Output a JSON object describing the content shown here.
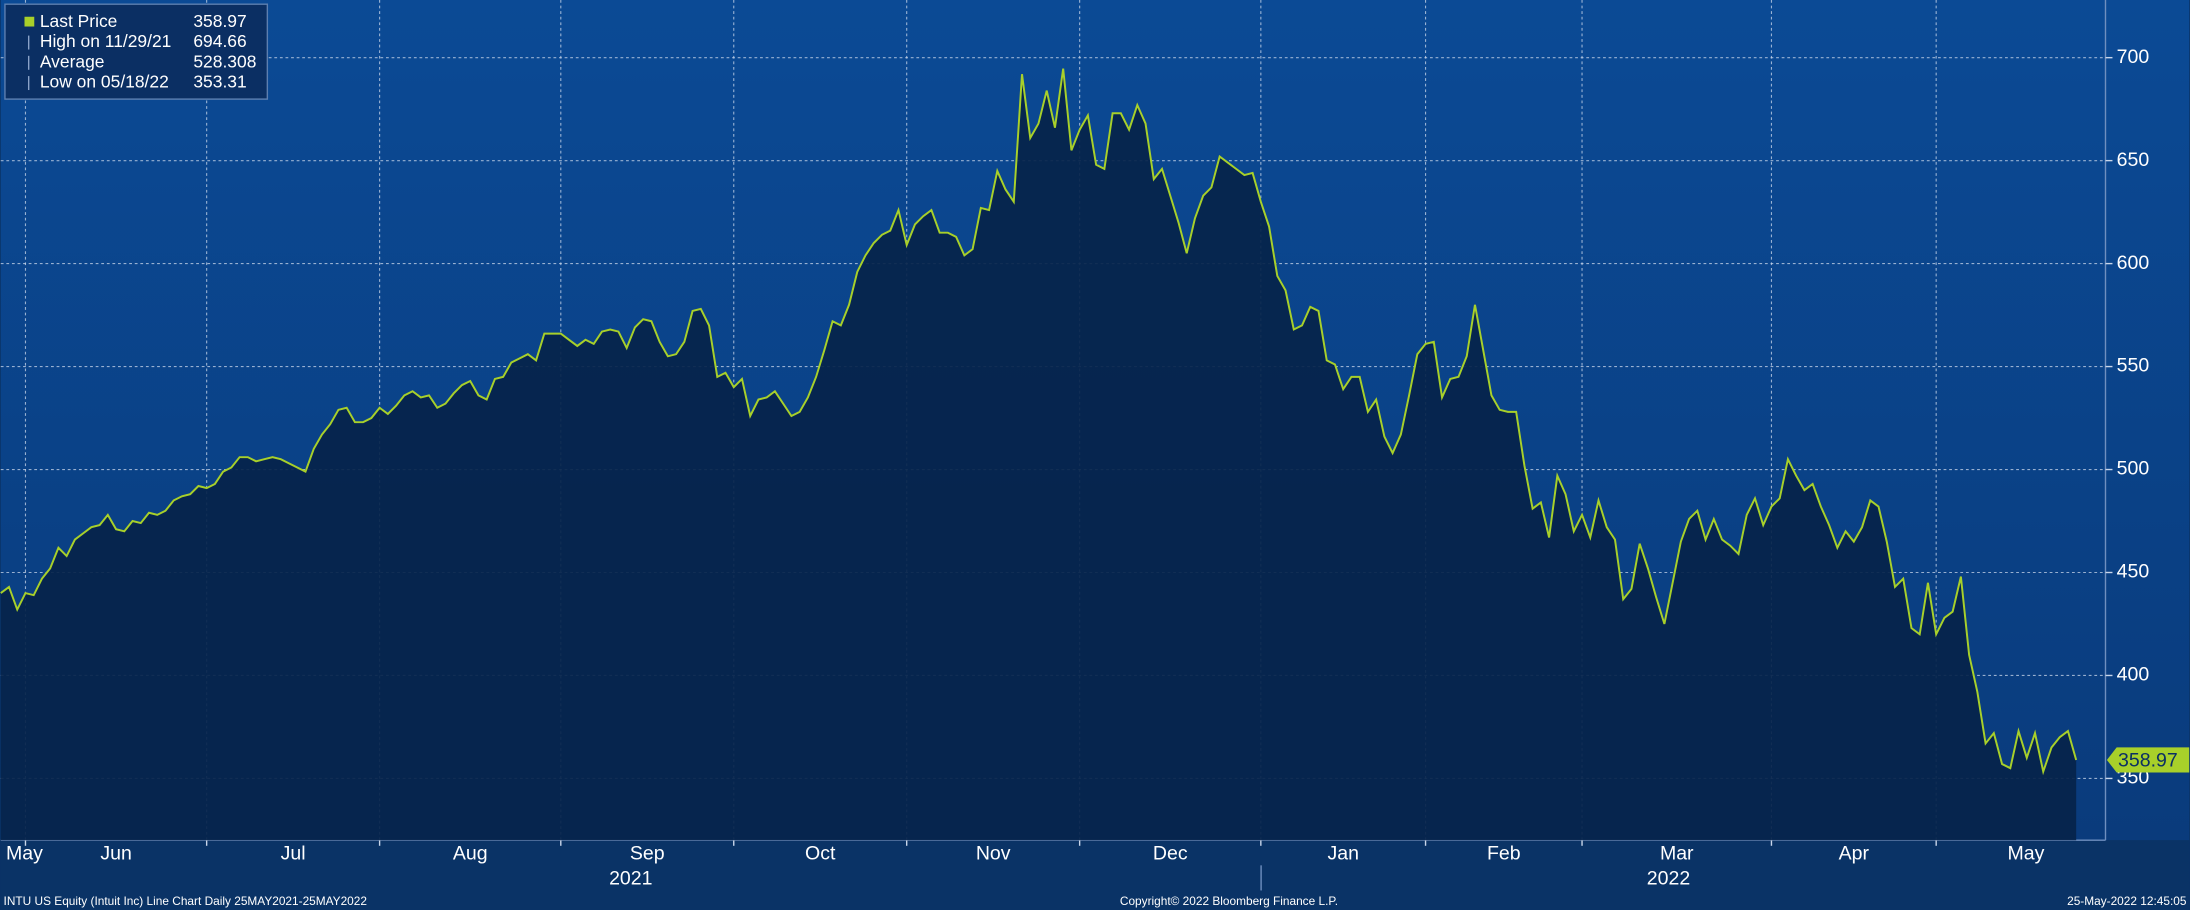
{
  "chart_data": {
    "type": "area-line",
    "series": [
      {
        "name": "Last Price",
        "color": "#a8d02a",
        "values": [
          440,
          443,
          432,
          440,
          439,
          447,
          452,
          462,
          458,
          466,
          469,
          472,
          473,
          478,
          471,
          470,
          475,
          474,
          479,
          478,
          480,
          485,
          487,
          488,
          492,
          491,
          493,
          499,
          501,
          506,
          506,
          504,
          505,
          506,
          505,
          503,
          501,
          499,
          510,
          517,
          522,
          529,
          530,
          523,
          523,
          525,
          530,
          527,
          531,
          536,
          538,
          535,
          536,
          530,
          532,
          537,
          541,
          543,
          536,
          534,
          544,
          545,
          552,
          554,
          556,
          553,
          566,
          566,
          566,
          563,
          560,
          563,
          561,
          567,
          568,
          567,
          559,
          569,
          573,
          572,
          562,
          555,
          556,
          562,
          577,
          578,
          570,
          545,
          547,
          540,
          544,
          526,
          534,
          535,
          538,
          532,
          526,
          528,
          535,
          545,
          558,
          572,
          570,
          580,
          596,
          604,
          610,
          614,
          616,
          626,
          609,
          619,
          623,
          626,
          615,
          615,
          613,
          604,
          607,
          627,
          626,
          645,
          636,
          630,
          692,
          661,
          668,
          684,
          666,
          694.66,
          655,
          665,
          672,
          648,
          646,
          673,
          673,
          665,
          677,
          668,
          641,
          646,
          633,
          620,
          605,
          622,
          633,
          637,
          652,
          649,
          646,
          643,
          644,
          630,
          618,
          594,
          587,
          568,
          570,
          579,
          577,
          553,
          551,
          539,
          545,
          545,
          528,
          534,
          516,
          508,
          517,
          536,
          556,
          561,
          562,
          535,
          544,
          545,
          555,
          580,
          558,
          536,
          529,
          528,
          528,
          502,
          481,
          484,
          467,
          497,
          488,
          470,
          478,
          467,
          485,
          472,
          466,
          437,
          442,
          464,
          452,
          438,
          425,
          445,
          465,
          476,
          480,
          466,
          476,
          466,
          463,
          459,
          478,
          486,
          473,
          482,
          486,
          505,
          497,
          490,
          493,
          482,
          473,
          462,
          470,
          465,
          472,
          485,
          482,
          465,
          443,
          447,
          423,
          420,
          445,
          420,
          428,
          431,
          448,
          410,
          392,
          367,
          372,
          357,
          355,
          373,
          360,
          372,
          353.31,
          365,
          370,
          373,
          358.97
        ]
      }
    ],
    "legend_stats": [
      {
        "label": "Last Price",
        "value": 358.97
      },
      {
        "label": "High on 11/29/21",
        "value": 694.66
      },
      {
        "label": "Average",
        "value": 528.308
      },
      {
        "label": "Low on 05/18/22",
        "value": 353.31
      }
    ],
    "month_labels": [
      "May",
      "Jun",
      "Jul",
      "Aug",
      "Sep",
      "Oct",
      "Nov",
      "Dec",
      "Jan",
      "Feb",
      "Mar",
      "Apr",
      "May"
    ],
    "year_labels": [
      "2021",
      "2022"
    ],
    "ylim": [
      320,
      728
    ],
    "yticks": [
      350,
      400,
      450,
      500,
      550,
      600,
      650,
      700
    ],
    "grid": true,
    "footer_left": "INTU US Equity (Intuit Inc) Line Chart  Daily 25MAY2021-25MAY2022",
    "footer_center": "Copyright© 2022 Bloomberg Finance L.P.",
    "footer_right": "25-May-2022 12:45:05"
  }
}
